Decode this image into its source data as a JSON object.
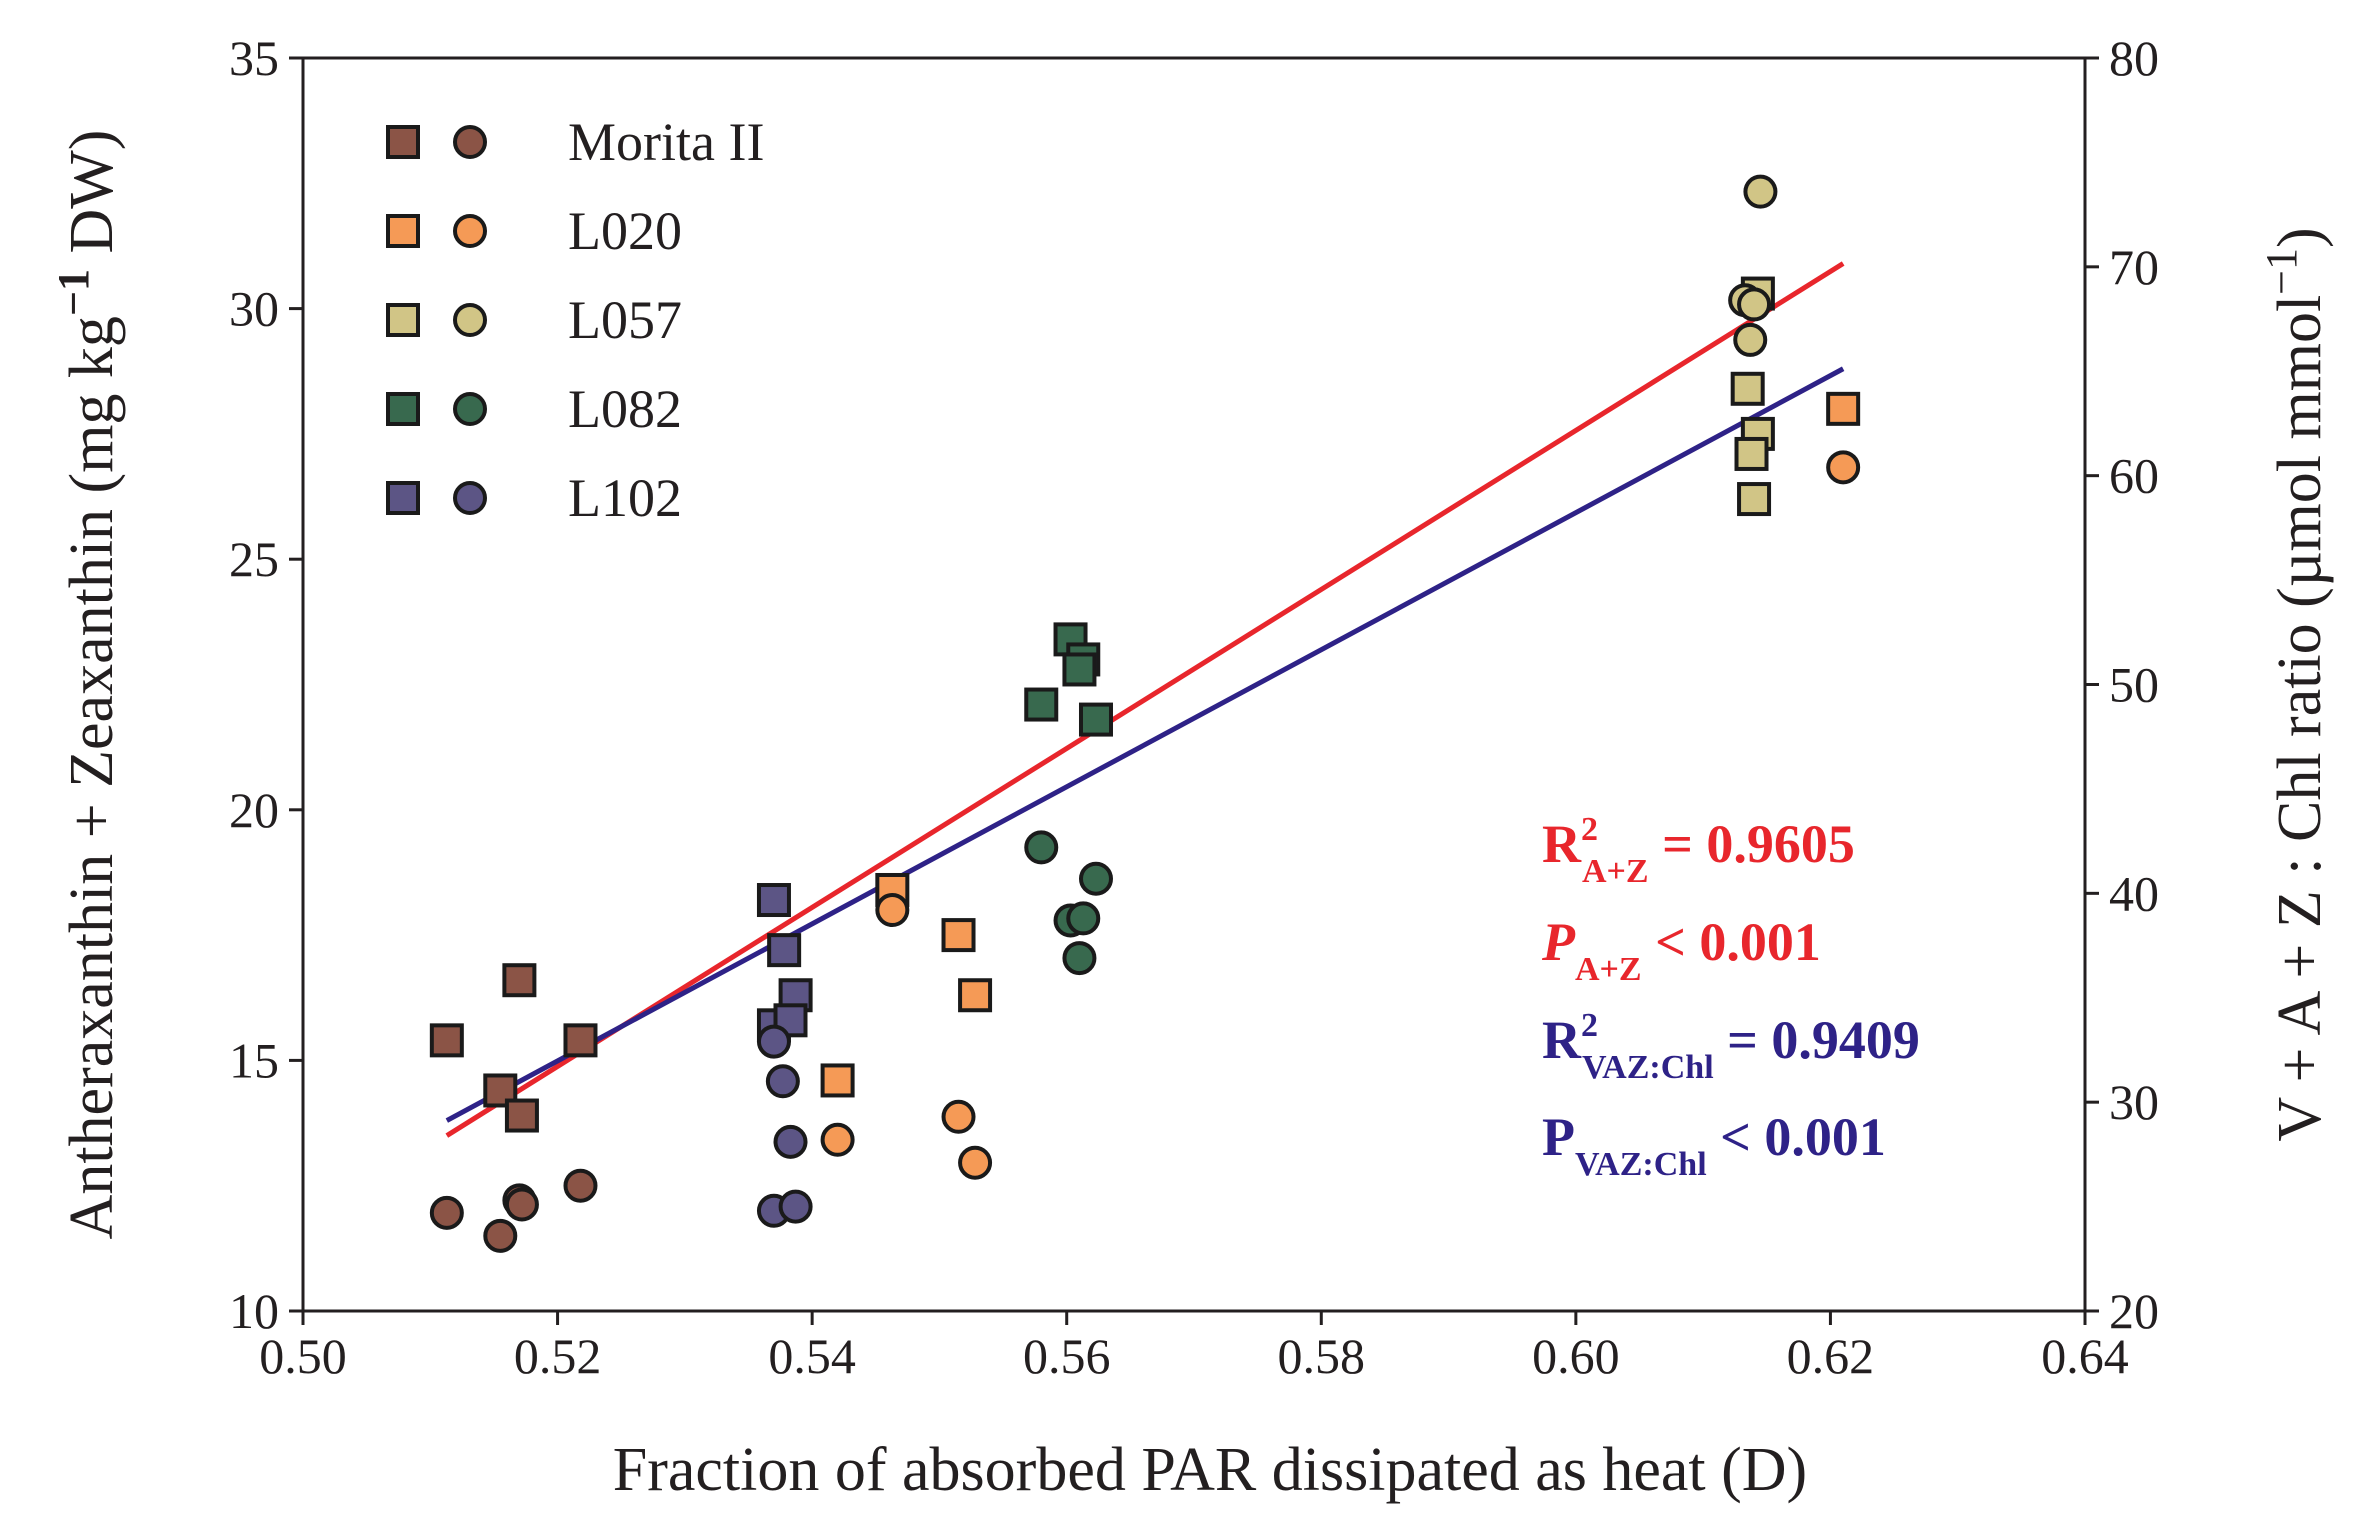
{
  "chart_data": {
    "type": "scatter",
    "xlabel": "Fraction of absorbed PAR dissipated as heat (D)",
    "ylabel_left": {
      "main": "Antheraxanthin + Zeaxanthin (mg kg",
      "sup": "−1",
      "end": " DW)"
    },
    "ylabel_right": {
      "main": "V + A + Z : Chl ratio (µmol mmol",
      "sup": "−1",
      "end": ")"
    },
    "xlim": [
      0.5,
      0.64
    ],
    "ylim_left": [
      10,
      35
    ],
    "ylim_right": [
      20,
      80
    ],
    "x_ticks": [
      0.5,
      0.52,
      0.54,
      0.56,
      0.58,
      0.6,
      0.62,
      0.64
    ],
    "x_tick_labels": [
      "0.50",
      "0.52",
      "0.54",
      "0.56",
      "0.58",
      "0.60",
      "0.62",
      "0.64"
    ],
    "y_left_ticks": [
      10,
      15,
      20,
      25,
      30,
      35
    ],
    "y_left_tick_labels": [
      "10",
      "15",
      "20",
      "25",
      "30",
      "35"
    ],
    "y_right_ticks": [
      20,
      30,
      40,
      50,
      60,
      70,
      80
    ],
    "y_right_tick_labels": [
      "20",
      "30",
      "40",
      "50",
      "60",
      "70",
      "80"
    ],
    "legend": {
      "placement": "top-left",
      "markers": [
        "square (A+Z, left axis)",
        "circle (V+A+Z:Chl, right axis)"
      ]
    },
    "series": [
      {
        "name": "Morita II",
        "color": "#8b5446",
        "squares": [
          [
            0.5113,
            15.4
          ],
          [
            0.5155,
            14.4
          ],
          [
            0.517,
            16.6
          ],
          [
            0.5172,
            13.9
          ],
          [
            0.5218,
            15.4
          ]
        ],
        "circles": [
          [
            0.5113,
            24.7
          ],
          [
            0.5155,
            23.6
          ],
          [
            0.517,
            25.3
          ],
          [
            0.5172,
            25.1
          ],
          [
            0.5218,
            26.0
          ]
        ]
      },
      {
        "name": "L020",
        "color": "#f59a56",
        "squares": [
          [
            0.5463,
            18.4
          ],
          [
            0.5515,
            17.5
          ],
          [
            0.542,
            14.6
          ],
          [
            0.5528,
            16.3
          ],
          [
            0.621,
            28.0
          ]
        ],
        "circles": [
          [
            0.5463,
            39.2
          ],
          [
            0.5515,
            29.3
          ],
          [
            0.542,
            28.2
          ],
          [
            0.5528,
            27.1
          ],
          [
            0.621,
            60.4
          ]
        ]
      },
      {
        "name": "L057",
        "color": "#d1c586",
        "squares": [
          [
            0.6143,
            30.3
          ],
          [
            0.6135,
            28.4
          ],
          [
            0.6143,
            27.5
          ],
          [
            0.6138,
            27.1
          ],
          [
            0.614,
            26.2
          ]
        ],
        "circles": [
          [
            0.6145,
            73.6
          ],
          [
            0.6133,
            68.4
          ],
          [
            0.614,
            68.2
          ],
          [
            0.6137,
            66.5
          ]
        ]
      },
      {
        "name": "L082",
        "color": "#38694e",
        "squares": [
          [
            0.5603,
            23.4
          ],
          [
            0.5613,
            23.0
          ],
          [
            0.561,
            22.8
          ],
          [
            0.558,
            22.1
          ],
          [
            0.5623,
            21.8
          ]
        ],
        "circles": [
          [
            0.558,
            42.2
          ],
          [
            0.5623,
            40.7
          ],
          [
            0.5603,
            38.7
          ],
          [
            0.5613,
            38.8
          ],
          [
            0.561,
            36.9
          ]
        ]
      },
      {
        "name": "L102",
        "color": "#5c5585",
        "squares": [
          [
            0.537,
            18.2
          ],
          [
            0.5378,
            17.2
          ],
          [
            0.5387,
            16.3
          ],
          [
            0.537,
            15.7
          ],
          [
            0.5383,
            15.8
          ]
        ],
        "circles": [
          [
            0.537,
            32.9
          ],
          [
            0.5377,
            31.0
          ],
          [
            0.5383,
            28.1
          ],
          [
            0.537,
            24.8
          ],
          [
            0.5387,
            25.0
          ]
        ]
      }
    ],
    "fit_lines": [
      {
        "name": "A+Z fit",
        "color": "#e8262c",
        "x": [
          0.5113,
          0.621
        ],
        "y_left": [
          13.5,
          30.9
        ]
      },
      {
        "name": "VAZ:Chl fit",
        "color": "#2e2287",
        "x": [
          0.5113,
          0.621
        ],
        "y_left": [
          13.8,
          28.8
        ]
      }
    ],
    "annotations": [
      {
        "id": "r2az",
        "color": "#e8262c",
        "prefix": "R",
        "sup": "2",
        "sub": "A+Z",
        "rest": " = 0.9605",
        "italic_prefix": false
      },
      {
        "id": "paz",
        "color": "#e8262c",
        "prefix": "P",
        "sup": "",
        "sub": "A+Z",
        "rest": " < 0.001",
        "italic_prefix": true
      },
      {
        "id": "r2vaz",
        "color": "#2e2287",
        "prefix": "R",
        "sup": "2",
        "sub": "VAZ:Chl",
        "rest": " = 0.9409",
        "italic_prefix": false
      },
      {
        "id": "pvaz",
        "color": "#2e2287",
        "prefix": "P",
        "sup": "",
        "sub": "VAZ:Chl",
        "rest": " < 0.001",
        "italic_prefix": false
      }
    ]
  }
}
